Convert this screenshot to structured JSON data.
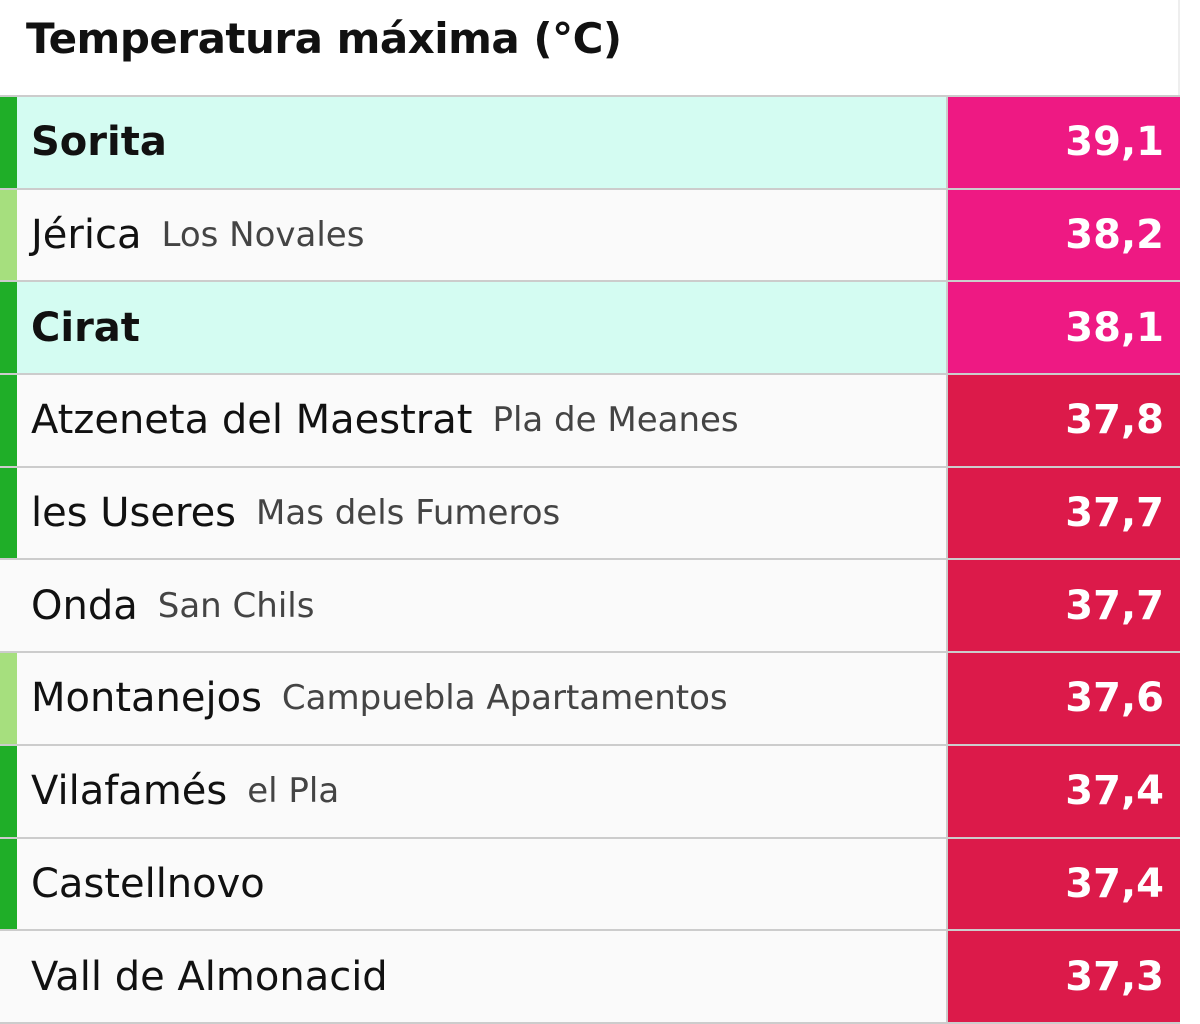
{
  "title": "Temperatura máxima (°C)",
  "colors": {
    "bar_dark": "#1fae28",
    "bar_light": "#a6df7e",
    "val_pink": "#ee1983",
    "val_red": "#dc1a4a"
  },
  "rows": [
    {
      "name": "Sorita",
      "sub": "",
      "value": "39,1",
      "bar": "dark",
      "highlight": true,
      "tone": "pink"
    },
    {
      "name": "Jérica",
      "sub": "Los Novales",
      "value": "38,2",
      "bar": "light",
      "highlight": false,
      "tone": "pink"
    },
    {
      "name": "Cirat",
      "sub": "",
      "value": "38,1",
      "bar": "dark",
      "highlight": true,
      "tone": "pink"
    },
    {
      "name": "Atzeneta del Maestrat",
      "sub": "Pla de Meanes",
      "value": "37,8",
      "bar": "dark",
      "highlight": false,
      "tone": "red"
    },
    {
      "name": "les Useres",
      "sub": "Mas dels Fumeros",
      "value": "37,7",
      "bar": "dark",
      "highlight": false,
      "tone": "red"
    },
    {
      "name": "Onda",
      "sub": "San Chils",
      "value": "37,7",
      "bar": "none",
      "highlight": false,
      "tone": "red"
    },
    {
      "name": "Montanejos",
      "sub": "Campuebla Apartamentos",
      "value": "37,6",
      "bar": "light",
      "highlight": false,
      "tone": "red"
    },
    {
      "name": "Vilafamés",
      "sub": "el Pla",
      "value": "37,4",
      "bar": "dark",
      "highlight": false,
      "tone": "red"
    },
    {
      "name": "Castellnovo",
      "sub": "",
      "value": "37,4",
      "bar": "dark",
      "highlight": false,
      "tone": "red"
    },
    {
      "name": "Vall de Almonacid",
      "sub": "",
      "value": "37,3",
      "bar": "none",
      "highlight": false,
      "tone": "red"
    }
  ]
}
